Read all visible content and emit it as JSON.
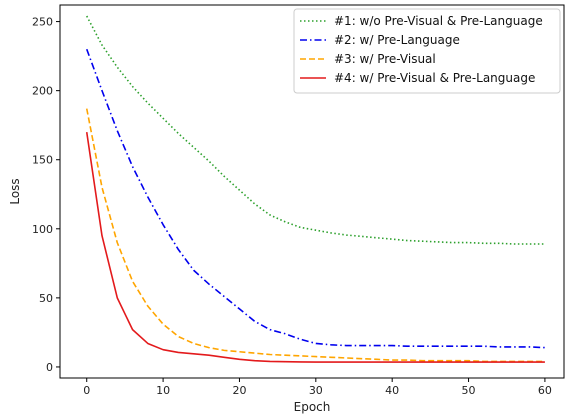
{
  "chart_data": {
    "type": "line",
    "xlabel": "Epoch",
    "ylabel": "Loss",
    "xlim": [
      -3.5,
      62.5
    ],
    "ylim": [
      -8,
      262
    ],
    "xticks": [
      0,
      10,
      20,
      30,
      40,
      50,
      60
    ],
    "yticks": [
      0,
      50,
      100,
      150,
      200,
      250
    ],
    "grid": false,
    "legend_position": "upper right",
    "x": [
      0,
      2,
      4,
      6,
      8,
      10,
      12,
      14,
      16,
      18,
      20,
      22,
      24,
      26,
      28,
      30,
      32,
      34,
      36,
      38,
      40,
      42,
      44,
      46,
      48,
      50,
      52,
      54,
      56,
      58,
      60
    ],
    "series": [
      {
        "name": "#1: w/o Pre-Visual & Pre-Language",
        "color": "#2ca02c",
        "dash": "dotted",
        "values": [
          254,
          233,
          217,
          203,
          191,
          180,
          169,
          159,
          149,
          138,
          128,
          118,
          110,
          105,
          101,
          99,
          97,
          95.5,
          94.5,
          93.5,
          92.5,
          91.5,
          91,
          90.5,
          90,
          90,
          89.5,
          89.5,
          89,
          89,
          89
        ]
      },
      {
        "name": "#2: w/ Pre-Language",
        "color": "#0000ee",
        "dash": "dashdot",
        "values": [
          230,
          200,
          171,
          145,
          123,
          103,
          85,
          70,
          60,
          51,
          42,
          33,
          27,
          24,
          20,
          17,
          16,
          15.5,
          15.5,
          15.5,
          15.5,
          15,
          15,
          15,
          15,
          15,
          15,
          14.5,
          14.5,
          14.5,
          14
        ]
      },
      {
        "name": "#3: w/ Pre-Visual",
        "color": "#ffa500",
        "dash": "dashed",
        "values": [
          187,
          130,
          90,
          62,
          44,
          31,
          22,
          17,
          14,
          12,
          11,
          10,
          9,
          8.5,
          8,
          7.5,
          7,
          6.5,
          6,
          5.5,
          5,
          5,
          4.5,
          4.5,
          4.5,
          4.5,
          4,
          4,
          4,
          4,
          4
        ]
      },
      {
        "name": "#4: w/ Pre-Visual & Pre-Language",
        "color": "#e31a1c",
        "dash": "solid",
        "values": [
          170,
          95,
          50,
          27,
          17,
          12.5,
          10.5,
          9.5,
          8.5,
          7,
          5.5,
          4.5,
          4,
          3.8,
          3.6,
          3.5,
          3.5,
          3.5,
          3.5,
          3.5,
          3.5,
          3.5,
          3.5,
          3.5,
          3.5,
          3.5,
          3.5,
          3.5,
          3.5,
          3.5,
          3.5
        ]
      }
    ]
  }
}
